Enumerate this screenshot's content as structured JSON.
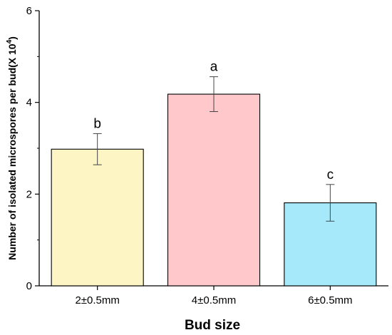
{
  "chart_data": {
    "type": "bar",
    "title": "",
    "xlabel": "Bud size",
    "ylabel_main": "Number of isolated microspores per bud(X 10",
    "ylabel_sup": "4",
    "ylabel_close": ")",
    "ylim": [
      0,
      6
    ],
    "yticks": [
      "0",
      "2",
      "4",
      "6"
    ],
    "categories": [
      "2±0.5mm",
      "4±0.5mm",
      "6±0.5mm"
    ],
    "values": [
      2.98,
      4.18,
      1.81
    ],
    "errors": [
      0.34,
      0.38,
      0.4
    ],
    "significance": [
      "b",
      "a",
      "c"
    ],
    "colors": [
      "#fdf5c4",
      "#ffc8cb",
      "#a6e9fb"
    ],
    "grid": false,
    "legend": "none"
  }
}
